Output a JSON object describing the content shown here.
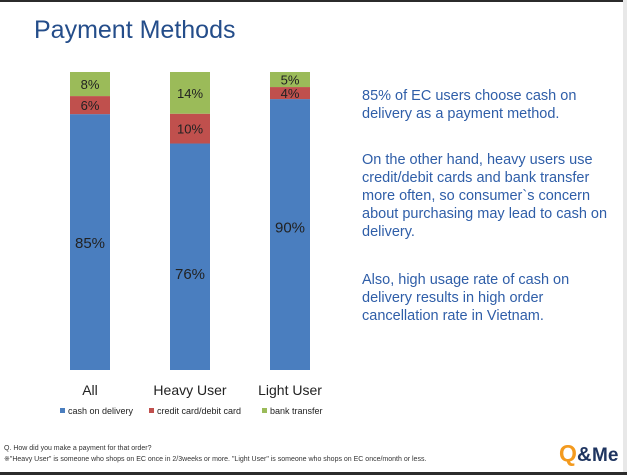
{
  "slide": {
    "title": "Payment Methods",
    "paragraphs": [
      "85% of EC users choose cash on delivery as a payment method.",
      "On the other hand, heavy users use credit/debit cards and bank transfer more often, so consumer`s concern about purchasing may lead to cash on delivery.",
      "Also, high usage rate of cash on delivery results in high order cancellation rate in Vietnam."
    ],
    "footnotes": [
      "Q.  How did you make a payment for that order?",
      "※\"Heavy User\" is someone who shops on EC  once in 2/3weeks or more. \"Light User\" is someone who shops on EC once/month or less."
    ],
    "logo_text": "Q&Me"
  },
  "colors": {
    "cash_on_delivery": "#4a7ebf",
    "credit_debit_card": "#c0504d",
    "bank_transfer": "#9bbb59",
    "title": "#244d8a",
    "body_text": "#2f5ea8",
    "logo_orange": "#f39a1e",
    "logo_navy": "#1f3560"
  },
  "chart_data": {
    "type": "bar",
    "stacked": true,
    "categories": [
      "All",
      "Heavy User",
      "Light User"
    ],
    "series": [
      {
        "name": "cash on delivery",
        "values": [
          85,
          76,
          90
        ],
        "labels": [
          "85%",
          "76%",
          "90%"
        ]
      },
      {
        "name": "credit card/debit card",
        "values": [
          6,
          10,
          4
        ],
        "labels": [
          "6%",
          "10%",
          "4%"
        ]
      },
      {
        "name": "bank transfer",
        "values": [
          8,
          14,
          5
        ],
        "labels": [
          "8%",
          "14%",
          "5%"
        ]
      }
    ],
    "title": "",
    "xlabel": "",
    "ylabel": "",
    "ylim": [
      0,
      100
    ],
    "grid": false,
    "legend": "bottom"
  }
}
